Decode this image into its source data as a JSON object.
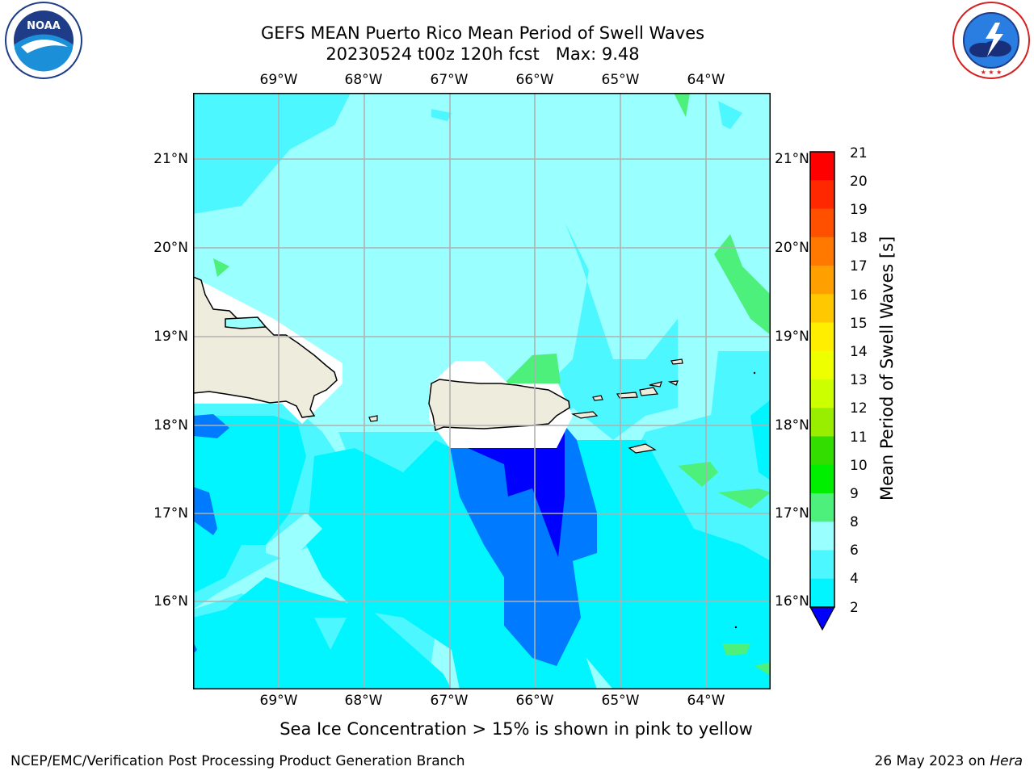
{
  "header": {
    "title_line1": "GEFS MEAN Puerto Rico Mean Period of Swell Waves",
    "title_line2": "20230524 t00z 120h fcst   Max: 9.48"
  },
  "logos": {
    "left": "NOAA",
    "left_ring_text": "NATIONAL OCEANIC AND ATMOSPHERIC ADMINISTRATION · U.S. DEPARTMENT OF COMMERCE",
    "right_ring_text": "NATIONAL WEATHER SERVICE"
  },
  "map": {
    "lon_labels": [
      "69°W",
      "68°W",
      "67°W",
      "66°W",
      "65°W",
      "64°W"
    ],
    "lat_labels": [
      "21°N",
      "20°N",
      "19°N",
      "18°N",
      "17°N",
      "16°N"
    ],
    "colors": {
      "land": "#eeecdc",
      "c2_4": "#007aff",
      "c4_6": "#00f5ff",
      "c6_8": "#4cf7ff",
      "c8_9": "#99ffff",
      "c9_10": "#4cf07a",
      "below_2": "#0000ff",
      "grid": "#b0b0b0"
    }
  },
  "colorbar": {
    "label": "Mean Period of Swell Waves [s]",
    "ticks": [
      "21",
      "20",
      "19",
      "18",
      "17",
      "16",
      "15",
      "14",
      "13",
      "12",
      "11",
      "10",
      "9",
      "8",
      "6",
      "4",
      "2"
    ],
    "colors": [
      "#ff0000",
      "#ff2800",
      "#ff5000",
      "#ff7800",
      "#ffa000",
      "#ffc800",
      "#ffee00",
      "#ffff00",
      "#eeff00",
      "#ccff00",
      "#99ee00",
      "#33dd00",
      "#00ee00",
      "#33dd44",
      "#4cf07a",
      "#99ffff",
      "#4cf7ff",
      "#00f5ff",
      "#007aff",
      "#0000ff"
    ]
  },
  "notes": {
    "sea_ice": "Sea Ice Concentration > 15% is shown in pink to yellow"
  },
  "footer": {
    "left": "NCEP/EMC/Verification Post Processing Product Generation Branch",
    "right_date": "26 May 2023 on ",
    "right_machine": "Hera"
  }
}
